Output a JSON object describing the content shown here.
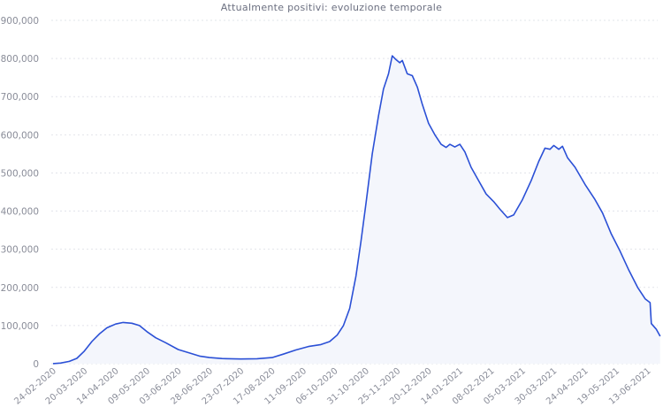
{
  "chart_data": {
    "type": "area",
    "title": "Attualmente positivi: evoluzione temporale",
    "xlabel": "",
    "ylabel": "",
    "ylim": [
      0,
      900000
    ],
    "grid": true,
    "legend": null,
    "yticks": [
      0,
      100000,
      200000,
      300000,
      400000,
      500000,
      600000,
      700000,
      800000,
      900000
    ],
    "ytick_labels": [
      "0",
      "100,000",
      "200,000",
      "300,000",
      "400,000",
      "500,000",
      "600,000",
      "700,000",
      "800,000",
      "900,000"
    ],
    "xtick_labels": [
      "24-02-2020",
      "20-03-2020",
      "14-04-2020",
      "09-05-2020",
      "03-06-2020",
      "28-06-2020",
      "23-07-2020",
      "17-08-2020",
      "11-09-2020",
      "06-10-2020",
      "31-10-2020",
      "25-11-2020",
      "20-12-2020",
      "14-01-2021",
      "08-02-2021",
      "05-03-2021",
      "30-03-2021",
      "24-04-2021",
      "19-05-2021",
      "13-06-2021"
    ],
    "colors": {
      "line": "#2b50d6",
      "fill": "#f4f6fc",
      "grid": "#e2e4ea",
      "text": "#8a8d99"
    },
    "series": [
      {
        "name": "Attualmente positivi",
        "points": [
          [
            "24-02-2020",
            220
          ],
          [
            "01-03-2020",
            1600
          ],
          [
            "08-03-2020",
            6000
          ],
          [
            "14-03-2020",
            14000
          ],
          [
            "20-03-2020",
            33000
          ],
          [
            "26-03-2020",
            58000
          ],
          [
            "01-04-2020",
            78000
          ],
          [
            "07-04-2020",
            94000
          ],
          [
            "14-04-2020",
            104000
          ],
          [
            "20-04-2020",
            108000
          ],
          [
            "27-04-2020",
            106000
          ],
          [
            "03-05-2020",
            100000
          ],
          [
            "09-05-2020",
            84000
          ],
          [
            "16-05-2020",
            68000
          ],
          [
            "24-05-2020",
            55000
          ],
          [
            "03-06-2020",
            37000
          ],
          [
            "12-06-2020",
            28000
          ],
          [
            "20-06-2020",
            20000
          ],
          [
            "28-06-2020",
            16000
          ],
          [
            "08-07-2020",
            13500
          ],
          [
            "23-07-2020",
            12400
          ],
          [
            "05-08-2020",
            13000
          ],
          [
            "17-08-2020",
            16000
          ],
          [
            "26-08-2020",
            25000
          ],
          [
            "05-09-2020",
            36000
          ],
          [
            "15-09-2020",
            45000
          ],
          [
            "25-09-2020",
            50000
          ],
          [
            "02-10-2020",
            58000
          ],
          [
            "08-10-2020",
            75000
          ],
          [
            "13-10-2020",
            100000
          ],
          [
            "18-10-2020",
            145000
          ],
          [
            "23-10-2020",
            230000
          ],
          [
            "27-10-2020",
            320000
          ],
          [
            "31-10-2020",
            420000
          ],
          [
            "05-11-2020",
            550000
          ],
          [
            "10-11-2020",
            650000
          ],
          [
            "14-11-2020",
            720000
          ],
          [
            "18-11-2020",
            760000
          ],
          [
            "21-11-2020",
            807000
          ],
          [
            "24-11-2020",
            797000
          ],
          [
            "27-11-2020",
            789000
          ],
          [
            "29-11-2020",
            795000
          ],
          [
            "03-12-2020",
            760000
          ],
          [
            "07-12-2020",
            755000
          ],
          [
            "11-12-2020",
            725000
          ],
          [
            "15-12-2020",
            680000
          ],
          [
            "20-12-2020",
            630000
          ],
          [
            "25-12-2020",
            600000
          ],
          [
            "30-12-2020",
            575000
          ],
          [
            "03-01-2021",
            567000
          ],
          [
            "06-01-2021",
            575000
          ],
          [
            "10-01-2021",
            568000
          ],
          [
            "14-01-2021",
            575000
          ],
          [
            "18-01-2021",
            555000
          ],
          [
            "23-01-2021",
            515000
          ],
          [
            "29-01-2021",
            480000
          ],
          [
            "04-02-2021",
            445000
          ],
          [
            "10-02-2021",
            425000
          ],
          [
            "15-02-2021",
            405000
          ],
          [
            "21-02-2021",
            383000
          ],
          [
            "26-02-2021",
            390000
          ],
          [
            "05-03-2021",
            430000
          ],
          [
            "12-03-2021",
            480000
          ],
          [
            "18-03-2021",
            530000
          ],
          [
            "23-03-2021",
            565000
          ],
          [
            "27-03-2021",
            562000
          ],
          [
            "30-03-2021",
            572000
          ],
          [
            "03-04-2021",
            562000
          ],
          [
            "06-04-2021",
            570000
          ],
          [
            "10-04-2021",
            540000
          ],
          [
            "16-04-2021",
            515000
          ],
          [
            "24-04-2021",
            470000
          ],
          [
            "02-05-2021",
            430000
          ],
          [
            "08-05-2021",
            395000
          ],
          [
            "15-05-2021",
            340000
          ],
          [
            "22-05-2021",
            295000
          ],
          [
            "29-05-2021",
            245000
          ],
          [
            "05-06-2021",
            200000
          ],
          [
            "11-06-2021",
            170000
          ],
          [
            "15-06-2021",
            160000
          ],
          [
            "16-06-2021",
            105000
          ],
          [
            "20-06-2021",
            90000
          ],
          [
            "23-06-2021",
            72000
          ]
        ]
      }
    ]
  }
}
